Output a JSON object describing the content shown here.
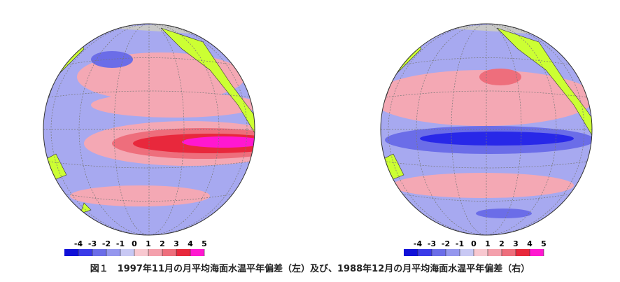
{
  "maps": [
    {
      "colorbar": {
        "ticks": [
          -4,
          -3,
          -2,
          -1,
          0,
          1,
          2,
          3,
          4,
          5
        ]
      }
    },
    {
      "colorbar": {
        "ticks": [
          -4,
          -3,
          -2,
          -1,
          0,
          1,
          2,
          3,
          4,
          5
        ]
      }
    }
  ],
  "caption": "図１　1997年11月の月平均海面水温平年偏差（左）及び、1988年12月の月平均海面水温平年偏差（右）"
}
